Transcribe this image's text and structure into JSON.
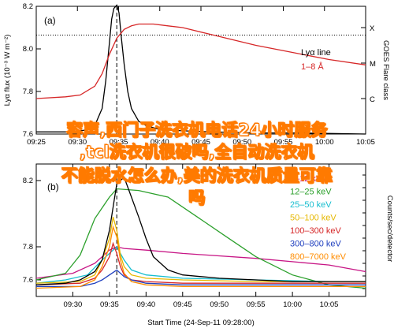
{
  "chart_data": [
    {
      "panel": "(a)",
      "type": "line",
      "x_ticks": [
        "09:25",
        "09:30",
        "09:35",
        "09:40",
        "09:45",
        "09:50",
        "09:55",
        "10:00",
        "10:05"
      ],
      "xlim": [
        0,
        45
      ],
      "ylim": [
        7.6,
        8.2
      ],
      "ylim_right": [
        0,
        3.6
      ],
      "y_ticks": [
        "8.2",
        "8.0",
        "7.8",
        "7.6"
      ],
      "ylabel": "Lyα flux (10⁻³ W m⁻²)",
      "ylabel_right": "GOES Flare class",
      "right_ticks": [
        "X",
        "M",
        "C"
      ],
      "hline_value": 8.065,
      "vline_x": 11,
      "legend_title": "Lyα line",
      "series": [
        {
          "name": "Lyα line",
          "color": "#000000",
          "x": [
            0,
            2,
            4,
            6,
            7,
            8,
            9,
            9.5,
            10,
            10.3,
            10.6,
            11,
            11.3,
            11.6,
            12,
            12.5,
            13,
            14,
            15,
            17,
            20,
            24,
            30,
            36,
            45
          ],
          "values": [
            7.61,
            7.61,
            7.61,
            7.615,
            7.62,
            7.64,
            7.72,
            7.85,
            8.03,
            8.14,
            8.19,
            8.205,
            8.17,
            8.06,
            7.93,
            7.8,
            7.72,
            7.66,
            7.64,
            7.62,
            7.615,
            7.61,
            7.605,
            7.605,
            7.6
          ]
        },
        {
          "name": "1–8 Å",
          "color": "#d62728",
          "x": [
            0,
            4,
            6,
            8,
            9,
            10,
            11,
            12,
            13,
            14,
            15,
            16,
            18,
            20,
            25,
            30,
            35,
            40,
            45
          ],
          "values": [
            1.0,
            1.05,
            1.1,
            1.35,
            1.7,
            2.25,
            2.7,
            2.95,
            3.05,
            3.1,
            3.1,
            3.1,
            3.05,
            3.0,
            2.75,
            2.5,
            2.3,
            2.1,
            1.95
          ]
        }
      ]
    },
    {
      "panel": "(b)",
      "type": "line",
      "x_ticks": [
        "09:30",
        "09:35",
        "09:40",
        "09:45",
        "09:50",
        "09:55",
        "10:00",
        "10:05"
      ],
      "xlabel": "Start Time (24-Sep-11 09:28:00)",
      "xlim": [
        0,
        45
      ],
      "ylim": [
        7.5,
        8.3
      ],
      "y_ticks": [
        "8.2",
        "7.8",
        "7.6"
      ],
      "ylabel_right": "Counts/sec/detector",
      "vline_x": 11,
      "legend_position": "top-right",
      "series": [
        {
          "name": "3–12 keV",
          "color": "#c71585",
          "x": [
            0,
            5,
            8,
            10,
            11,
            12,
            15,
            20,
            30,
            40,
            45
          ],
          "values": [
            7.61,
            7.64,
            7.7,
            7.78,
            7.8,
            7.79,
            7.78,
            7.76,
            7.73,
            7.69,
            7.65
          ]
        },
        {
          "name": "12–25 keV",
          "color": "#2ca02c",
          "x": [
            0,
            4,
            6,
            8,
            10,
            11,
            14,
            18,
            22,
            26,
            30,
            35,
            40,
            45
          ],
          "values": [
            7.6,
            7.64,
            7.75,
            7.97,
            8.1,
            8.15,
            8.14,
            8.1,
            7.98,
            7.86,
            7.74,
            7.63,
            7.57,
            7.55
          ]
        },
        {
          "name": "25–50 keV",
          "color": "#17becf",
          "x": [
            0,
            4,
            7,
            9,
            10,
            11,
            12,
            13,
            15,
            20,
            30,
            40,
            45
          ],
          "values": [
            7.58,
            7.6,
            7.63,
            7.72,
            7.76,
            7.8,
            7.72,
            7.66,
            7.63,
            7.61,
            7.6,
            7.59,
            7.59
          ]
        },
        {
          "name": "50–100 keV",
          "color": "#e6b800",
          "x": [
            0,
            6,
            8,
            9,
            10,
            10.5,
            11,
            11.5,
            12,
            13,
            15,
            20,
            30,
            40,
            45
          ],
          "values": [
            7.58,
            7.59,
            7.63,
            7.72,
            7.85,
            7.98,
            7.9,
            7.75,
            7.68,
            7.63,
            7.61,
            7.6,
            7.59,
            7.59,
            7.59
          ]
        },
        {
          "name": "100–300 keV",
          "color": "#d62728",
          "x": [
            0,
            6,
            8,
            9,
            10,
            10.5,
            11,
            11.5,
            12,
            13,
            15,
            20,
            30,
            40,
            45
          ],
          "values": [
            7.57,
            7.58,
            7.61,
            7.66,
            7.74,
            7.82,
            7.76,
            7.68,
            7.63,
            7.6,
            7.59,
            7.58,
            7.58,
            7.58,
            7.58
          ]
        },
        {
          "name": "300–800 keV",
          "color": "#1f3fbf",
          "x": [
            0,
            6,
            8,
            9,
            10,
            11,
            12,
            13,
            15,
            20,
            30,
            40,
            45
          ],
          "values": [
            7.56,
            7.56,
            7.58,
            7.6,
            7.63,
            7.66,
            7.62,
            7.6,
            7.58,
            7.57,
            7.57,
            7.57,
            7.57
          ]
        },
        {
          "name": "800–7000 keV",
          "color": "#ff8c00",
          "x": [
            0,
            6,
            8,
            9,
            10,
            10.5,
            11,
            11.5,
            12,
            13,
            15,
            20,
            30,
            40,
            45
          ],
          "values": [
            7.55,
            7.56,
            7.6,
            7.68,
            7.8,
            7.92,
            7.86,
            7.72,
            7.64,
            7.59,
            7.57,
            7.56,
            7.56,
            7.56,
            7.56
          ]
        },
        {
          "name": "",
          "color": "#000000",
          "x": [
            0,
            4,
            6,
            8,
            9,
            10,
            11,
            12,
            13,
            14,
            15,
            16,
            18,
            20,
            25,
            30,
            35,
            40,
            45
          ],
          "values": [
            7.57,
            7.58,
            7.6,
            7.65,
            7.72,
            7.9,
            8.18,
            8.22,
            8.1,
            7.98,
            7.85,
            7.74,
            7.66,
            7.63,
            7.61,
            7.6,
            7.59,
            7.59,
            7.59
          ]
        }
      ]
    }
  ],
  "overlay_text": {
    "line1": "容声,西门子洗衣机电话24小时服务",
    "line2": ",tcl洗衣机很破吗,全自动洗衣机",
    "line3": "不能脱水怎么办,美的洗衣机质量可靠",
    "line4": "吗"
  }
}
